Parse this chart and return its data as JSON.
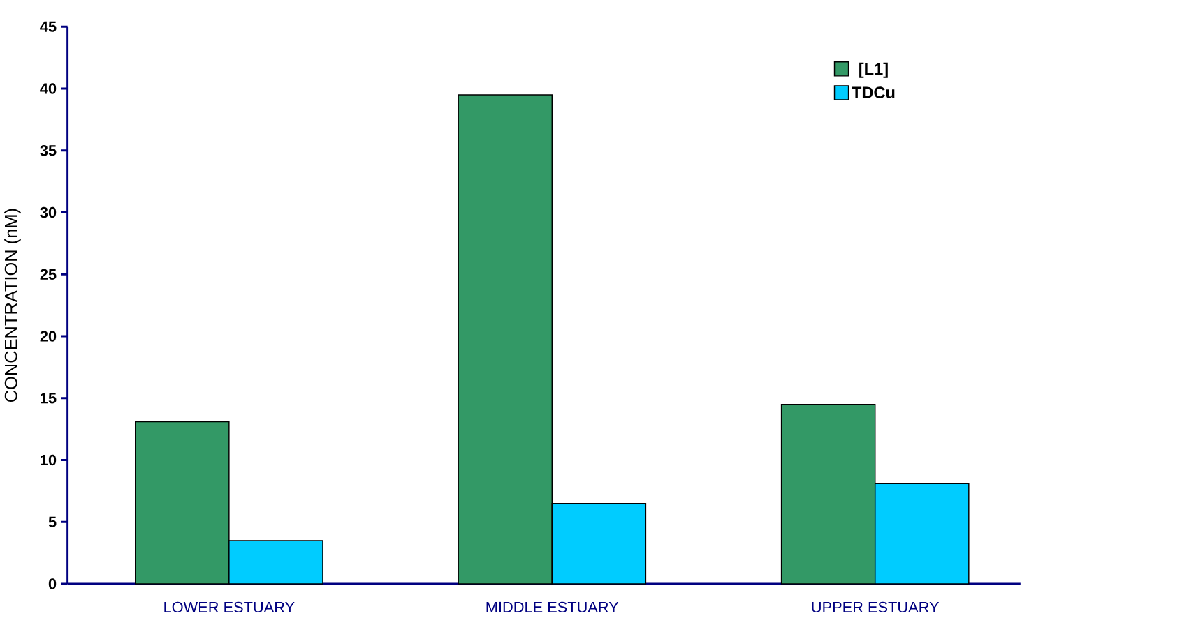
{
  "chart_data": {
    "type": "bar",
    "ylabel": "CONCENTRATION   (nM)",
    "categories": [
      "LOWER ESTUARY",
      "MIDDLE ESTUARY",
      "UPPER ESTUARY"
    ],
    "series": [
      {
        "name": "[L1]",
        "color": "#339966",
        "values": [
          13.1,
          39.5,
          14.5
        ]
      },
      {
        "name": "TDCu",
        "color": "#00ccff",
        "values": [
          3.5,
          6.5,
          8.1
        ]
      }
    ],
    "ylim": [
      0,
      45
    ],
    "yticks": [
      0,
      5,
      10,
      15,
      20,
      25,
      30,
      35,
      40,
      45
    ],
    "grid": false,
    "legend": "top right"
  }
}
